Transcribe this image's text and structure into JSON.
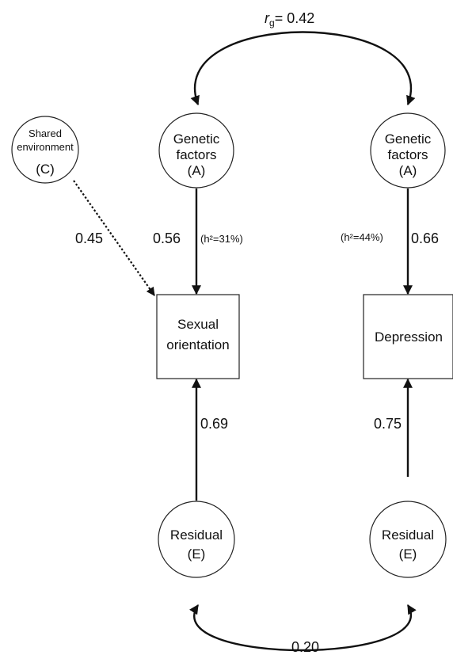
{
  "nodes": {
    "shared_env": {
      "line1": "Shared",
      "line2": "environment",
      "line3": "(C)"
    },
    "genetic_left": {
      "line1": "Genetic",
      "line2": "factors",
      "line3": "(A)"
    },
    "genetic_right": {
      "line1": "Genetic",
      "line2": "factors",
      "line3": "(A)"
    },
    "sexual_orientation": {
      "line1": "Sexual",
      "line2": "orientation"
    },
    "depression": {
      "label": "Depression"
    },
    "residual_left": {
      "line1": "Residual",
      "line2": "(E)"
    },
    "residual_right": {
      "line1": "Residual",
      "line2": "(E)"
    }
  },
  "paths": {
    "rg_symbol": "r",
    "rg_sub": "g",
    "rg_value": "= 0.42",
    "shared_env_to_so": "0.45",
    "genetic_to_so": "0.56",
    "h2_left": "(h²=31%)",
    "h2_right": "(h²=44%)",
    "genetic_to_dep": "0.66",
    "residual_to_so": "0.69",
    "residual_to_dep": "0.75",
    "residual_corr": "0.20"
  }
}
